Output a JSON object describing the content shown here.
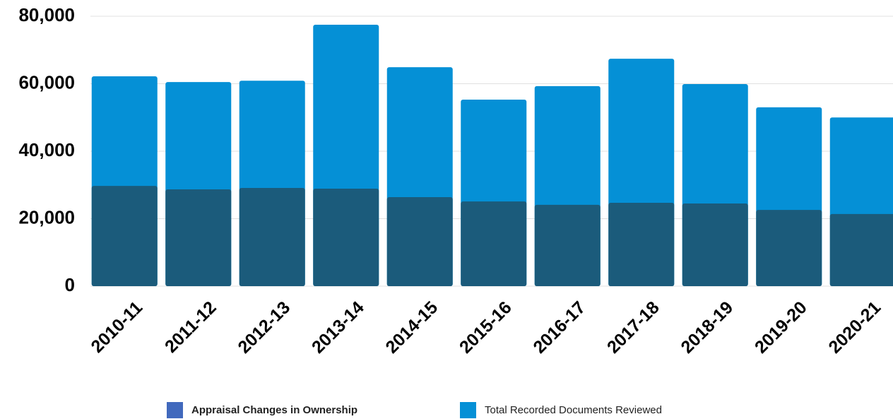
{
  "chart_data": {
    "type": "bar",
    "overlap": true,
    "categories": [
      "2010-11",
      "2011-12",
      "2012-13",
      "2013-14",
      "2014-15",
      "2015-16",
      "2016-17",
      "2017-18",
      "2018-19",
      "2019-20",
      "2020-21"
    ],
    "series": [
      {
        "name": "Appraisal Changes in Ownership",
        "color": "#1b5b7b",
        "legend_color": "#4169bd",
        "values": [
          29700,
          28700,
          29100,
          28900,
          26400,
          25100,
          24100,
          24700,
          24500,
          22600,
          21400
        ]
      },
      {
        "name": "Total Recorded Documents Reviewed",
        "color": "#0590d6",
        "legend_color": "#0590d6",
        "values": [
          62200,
          60500,
          60900,
          77500,
          64900,
          55300,
          59300,
          67400,
          59900,
          53000,
          50000
        ]
      }
    ],
    "ylim": [
      0,
      80000
    ],
    "yticks": [
      0,
      {
        "value": 20000,
        "label": "20,000"
      },
      {
        "value": 40000,
        "label": "40,000"
      },
      {
        "value": 60000,
        "label": "60,000"
      },
      {
        "value": 80000,
        "label": "80,000"
      }
    ],
    "grid": true
  }
}
